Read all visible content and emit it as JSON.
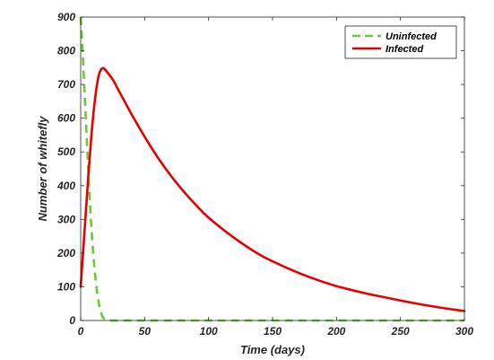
{
  "chart_data": {
    "type": "line",
    "title": "",
    "xlabel": "Time (days)",
    "ylabel": "Number of whitefly",
    "xlim": [
      0,
      300
    ],
    "ylim": [
      0,
      900
    ],
    "xticks": [
      0,
      50,
      100,
      150,
      200,
      250,
      300
    ],
    "yticks": [
      0,
      100,
      200,
      300,
      400,
      500,
      600,
      700,
      800,
      900
    ],
    "grid": false,
    "legend_position": "top-right",
    "series": [
      {
        "name": "Uninfected",
        "color": "#66cc33",
        "dash": "dashed",
        "x": [
          0,
          2,
          4,
          6,
          8,
          10,
          12,
          14,
          16,
          18,
          20,
          25,
          30,
          40,
          50,
          100,
          150,
          200,
          250,
          300
        ],
        "y": [
          900,
          760,
          600,
          440,
          300,
          190,
          110,
          55,
          22,
          6,
          2,
          0,
          0,
          0,
          0,
          0,
          0,
          0,
          0,
          0
        ]
      },
      {
        "name": "Infected",
        "color": "#e60000",
        "dash": "solid",
        "x": [
          0,
          2,
          4,
          6,
          8,
          10,
          12,
          14,
          16,
          18,
          20,
          25,
          30,
          40,
          50,
          60,
          70,
          80,
          90,
          100,
          120,
          140,
          160,
          180,
          200,
          220,
          240,
          260,
          280,
          300
        ],
        "y": [
          100,
          210,
          320,
          430,
          530,
          615,
          680,
          725,
          745,
          748,
          740,
          715,
          680,
          610,
          545,
          485,
          432,
          385,
          343,
          305,
          245,
          195,
          158,
          127,
          102,
          83,
          67,
          52,
          39,
          28
        ]
      }
    ]
  }
}
